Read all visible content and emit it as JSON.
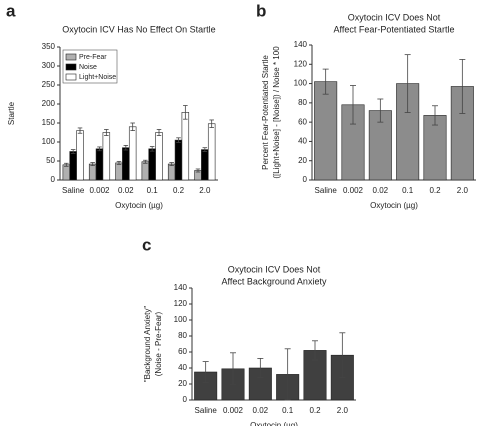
{
  "chart_data": [
    {
      "type": "bar",
      "panel_label": "a",
      "title": [
        "Oxytocin ICV Has No Effect On Startle"
      ],
      "ylabel": [
        "Startle"
      ],
      "xlabel": "Oxytocin (µg)",
      "categories": [
        "Saline",
        "0.002",
        "0.02",
        "0.1",
        "0.2",
        "2.0"
      ],
      "series": [
        {
          "name": "Pre-Fear",
          "color": "#b0b0b0",
          "values": [
            40,
            42,
            45,
            48,
            42,
            25
          ],
          "errors": [
            4,
            4,
            4,
            4,
            4,
            4
          ]
        },
        {
          "name": "Noise",
          "color": "#000000",
          "values": [
            75,
            82,
            85,
            82,
            105,
            80
          ],
          "errors": [
            5,
            5,
            6,
            6,
            6,
            5
          ]
        },
        {
          "name": "Light+Noise",
          "color": "#ffffff",
          "values": [
            130,
            125,
            140,
            125,
            178,
            148
          ],
          "errors": [
            7,
            8,
            10,
            8,
            18,
            10
          ]
        }
      ],
      "ylim": [
        0,
        350
      ],
      "yticks": [
        0,
        50,
        100,
        150,
        200,
        250,
        300,
        350
      ],
      "legend": "upper left"
    },
    {
      "type": "bar",
      "panel_label": "b",
      "title": [
        "Oxytocin ICV Does Not",
        "Affect Fear-Potentiated Startle"
      ],
      "ylabel": [
        "Percent Fear-Potentiated Startle",
        "([Light+Noise] - [Noise]) / Noise * 100"
      ],
      "xlabel": "Oxytocin (µg)",
      "categories": [
        "Saline",
        "0.002",
        "0.02",
        "0.1",
        "0.2",
        "2.0"
      ],
      "values": [
        102,
        78,
        72,
        100,
        67,
        97
      ],
      "errors": [
        13,
        20,
        12,
        30,
        10,
        28
      ],
      "color": "#8c8c8c",
      "ylim": [
        0,
        140
      ],
      "yticks": [
        0,
        20,
        40,
        60,
        80,
        100,
        120,
        140
      ]
    },
    {
      "type": "bar",
      "panel_label": "c",
      "title": [
        "Oxytocin ICV Does Not",
        "Affect Background Anxiety"
      ],
      "ylabel": [
        "\"Background Anxiety\"",
        "(Noise - Pre-Fear)"
      ],
      "xlabel": "Oxytocin (µg)",
      "categories": [
        "Saline",
        "0.002",
        "0.02",
        "0.1",
        "0.2",
        "2.0"
      ],
      "values": [
        35,
        39,
        40,
        32,
        62,
        56
      ],
      "errors": [
        13,
        20,
        12,
        32,
        12,
        28
      ],
      "color": "#404040",
      "ylim": [
        0,
        140
      ],
      "yticks": [
        0,
        20,
        40,
        60,
        80,
        100,
        120,
        140
      ]
    }
  ]
}
